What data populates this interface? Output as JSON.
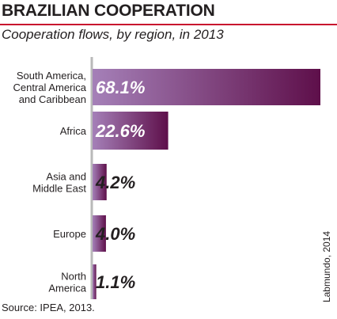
{
  "header": {
    "title": "BRAZILIAN COOPERATION",
    "subtitle": "Cooperation flows, by region, in 2013"
  },
  "footer": {
    "source": "Source: IPEA, 2013.",
    "credit": "Labmundo, 2014"
  },
  "colors": {
    "accent": "#c8102e",
    "bar_start": "#a580b8",
    "bar_end": "#5e0f4a",
    "label_light": "#ffffff",
    "label_dark": "#231f20"
  },
  "chart_data": {
    "type": "bar",
    "orientation": "horizontal",
    "title": "BRAZILIAN COOPERATION",
    "subtitle": "Cooperation flows, by region, in 2013",
    "categories": [
      [
        "South America,",
        "Central America",
        "and Caribbean"
      ],
      [
        "Africa"
      ],
      [
        "Asia and",
        "Middle East"
      ],
      [
        "Europe"
      ],
      [
        "North",
        "America"
      ]
    ],
    "values": [
      68.1,
      22.6,
      4.2,
      4.0,
      1.1
    ],
    "value_labels": [
      "68.1%",
      "22.6%",
      "4.2%",
      "4.0%",
      "1.1%"
    ],
    "unit": "%",
    "xlim": [
      0,
      68.1
    ],
    "grid": false,
    "legend": "none"
  }
}
